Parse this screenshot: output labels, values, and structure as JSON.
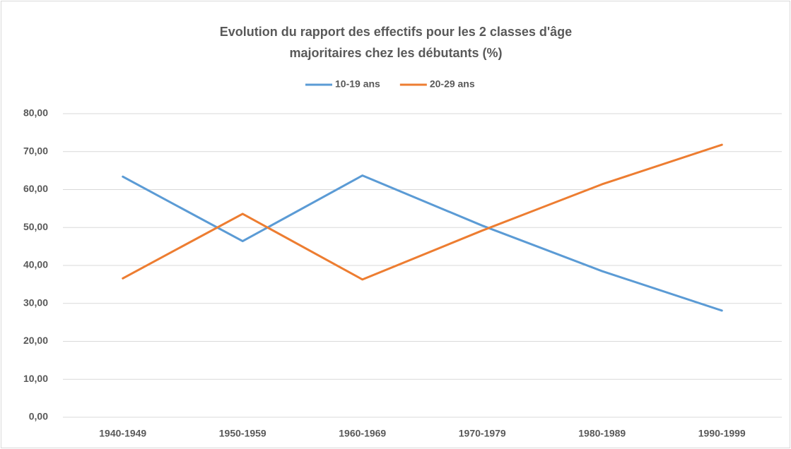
{
  "chart_data": {
    "type": "line",
    "title": "Evolution du rapport des effectifs pour les 2 classes d'âge majoritaires chez les débutants (%)",
    "categories": [
      "1940-1949",
      "1950-1959",
      "1960-1969",
      "1970-1979",
      "1980-1989",
      "1990-1999"
    ],
    "series": [
      {
        "name": "10-19 ans",
        "color": "#5b9bd5",
        "values": [
          63.4,
          46.4,
          63.7,
          50.5,
          38.5,
          28.1
        ]
      },
      {
        "name": "20-29 ans",
        "color": "#ed7d31",
        "values": [
          36.6,
          53.6,
          36.3,
          49.2,
          61.4,
          71.8
        ]
      }
    ],
    "ylim": [
      0,
      80
    ],
    "yticks": [
      {
        "value": 0,
        "label": "0,00"
      },
      {
        "value": 10,
        "label": "10,00"
      },
      {
        "value": 20,
        "label": "20,00"
      },
      {
        "value": 30,
        "label": "30,00"
      },
      {
        "value": 40,
        "label": "40,00"
      },
      {
        "value": 50,
        "label": "50,00"
      },
      {
        "value": 60,
        "label": "60,00"
      },
      {
        "value": 70,
        "label": "70,00"
      },
      {
        "value": 80,
        "label": "80,00"
      }
    ],
    "grid": true,
    "legend": "top"
  }
}
